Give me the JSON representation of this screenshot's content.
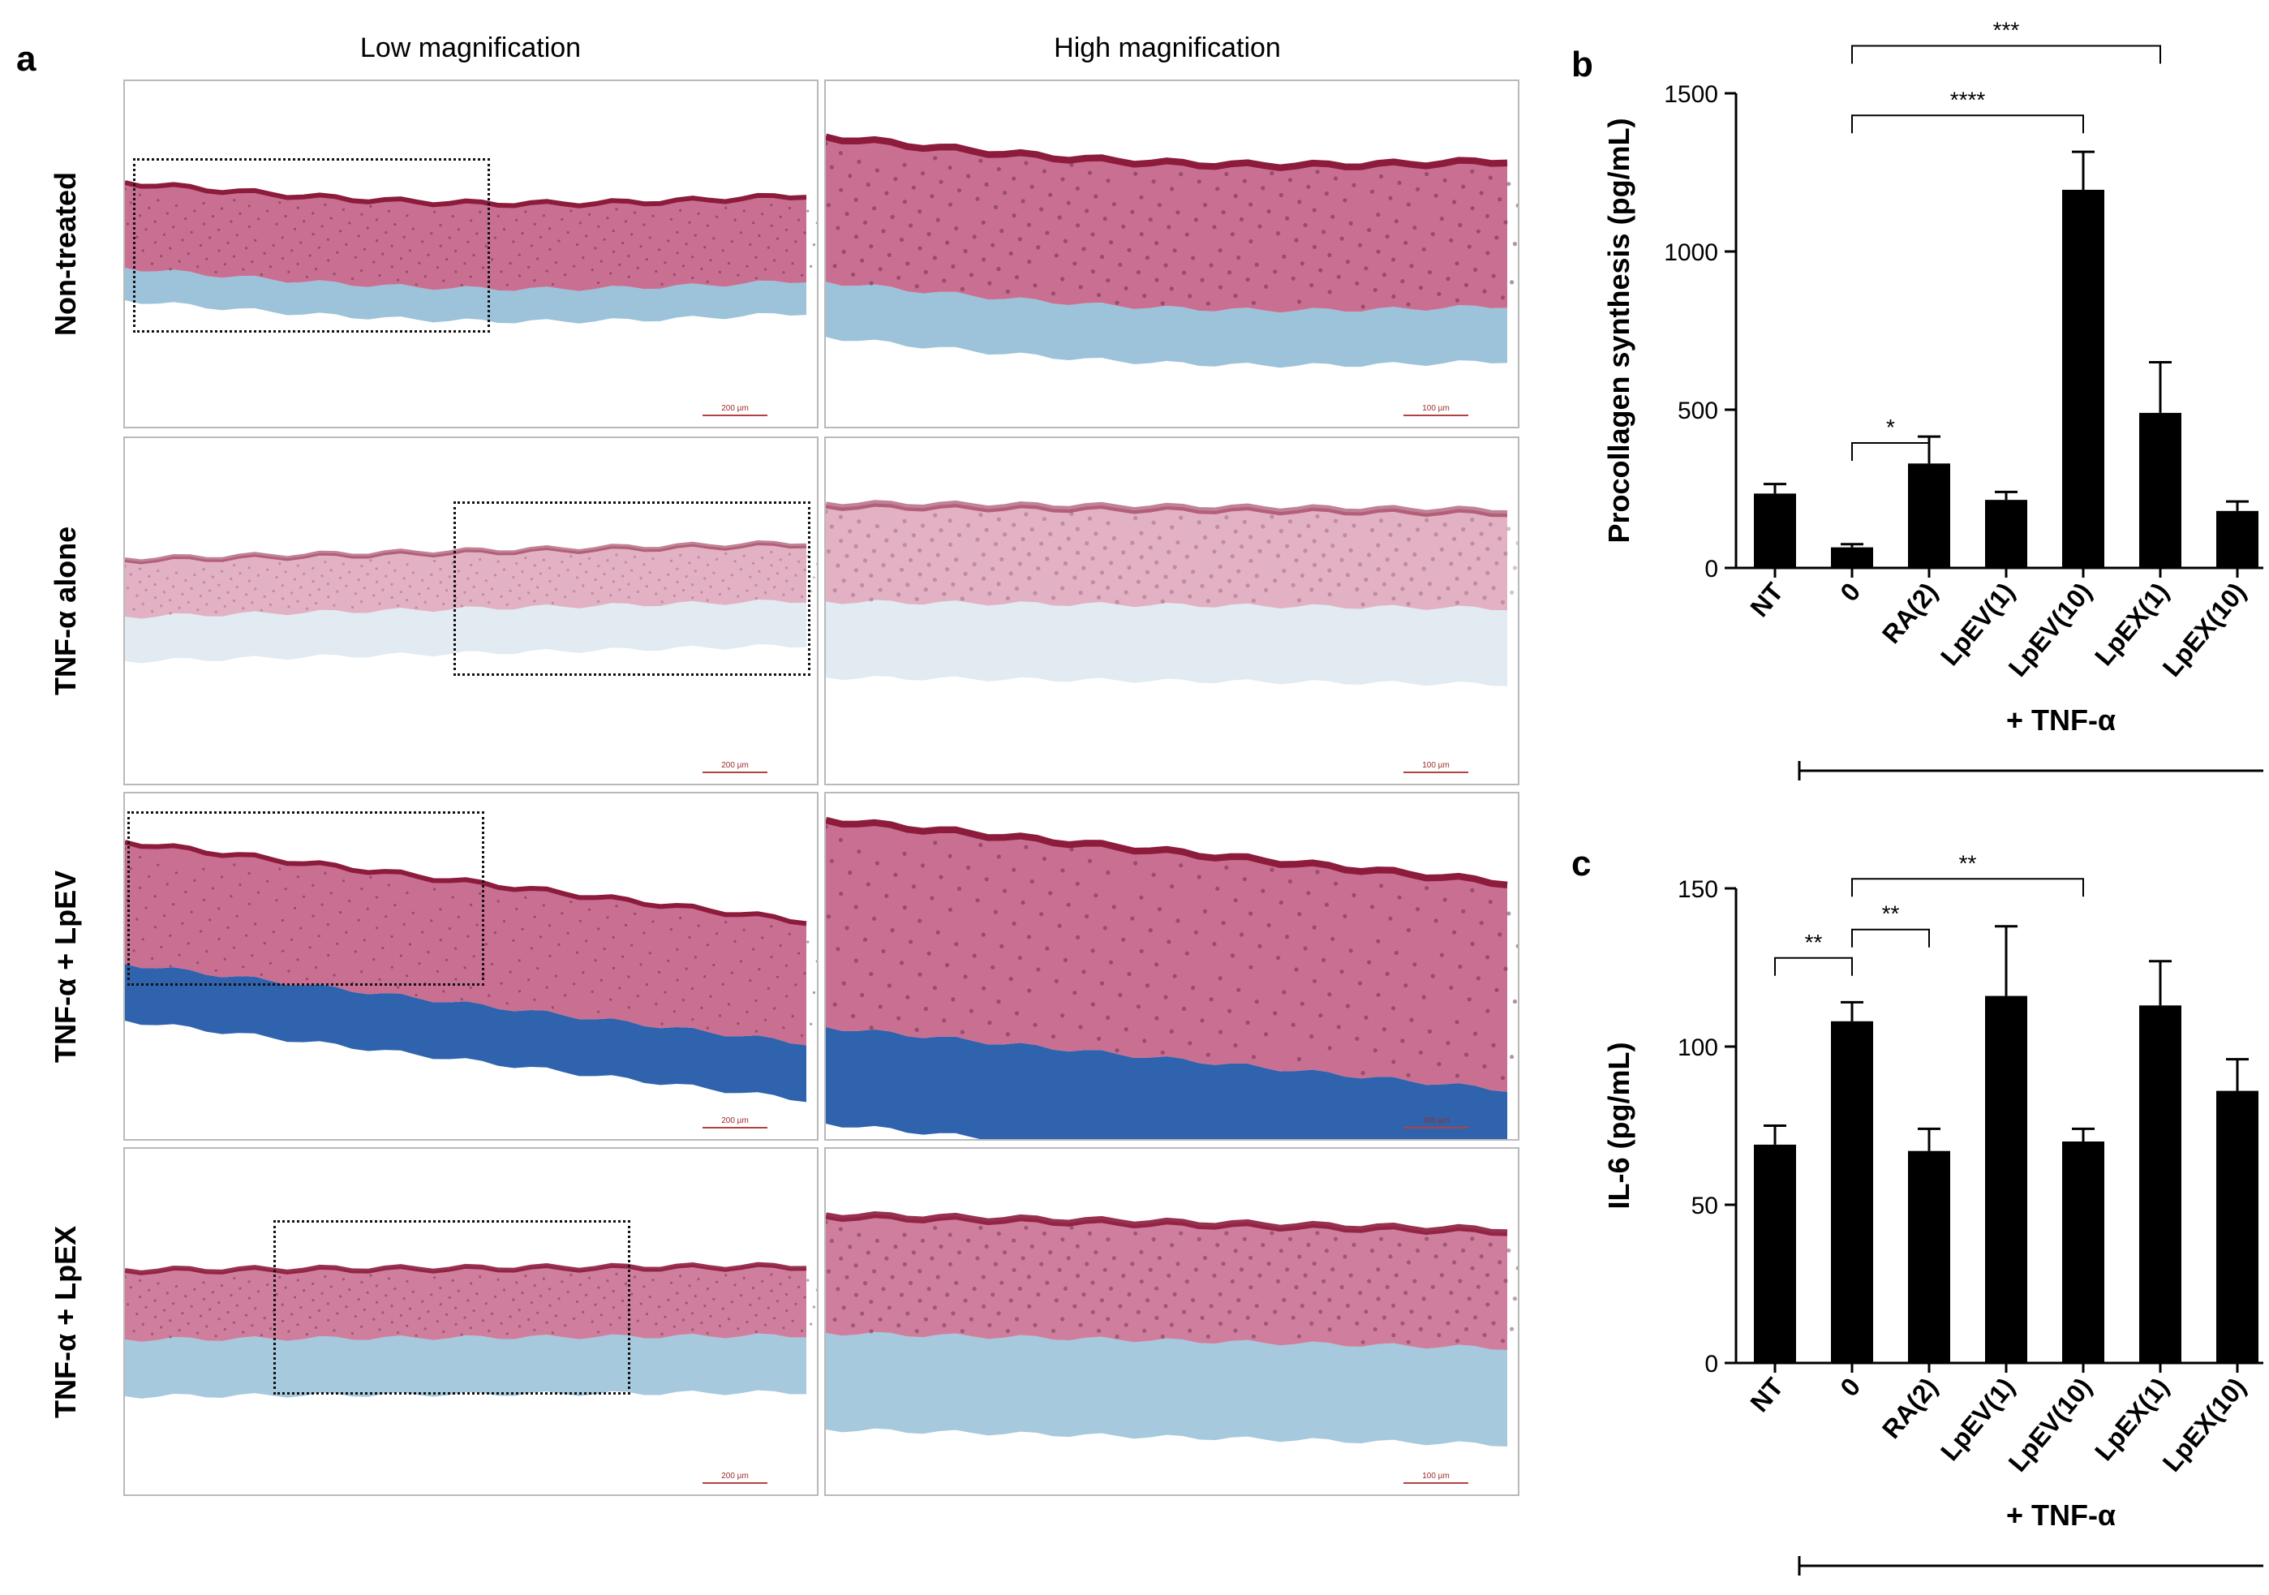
{
  "panel_a": {
    "letter": "a",
    "col_headers": [
      "Low magnification",
      "High magnification"
    ],
    "rows": [
      {
        "label": "Non-treated",
        "scale_low": "200 µm",
        "scale_high": "100 µm"
      },
      {
        "label": "TNF-α alone",
        "scale_low": "200 µm",
        "scale_high": "100 µm"
      },
      {
        "label": "TNF-α + LpEV",
        "scale_low": "200 µm",
        "scale_high": "100 µm"
      },
      {
        "label": "TNF-α + LpEX",
        "scale_low": "200 µm",
        "scale_high": "100 µm"
      }
    ],
    "colors": {
      "epidermis": "#c0577f",
      "stratum": "#8c1b3c",
      "dermis_light": "#9cc3d9",
      "dermis_dark": "#2f63ad"
    }
  },
  "panel_b": {
    "letter": "b"
  },
  "panel_c": {
    "letter": "c"
  },
  "chart_data": [
    {
      "type": "bar",
      "panel": "b",
      "categories": [
        "NT",
        "0",
        "RA(2)",
        "LpEV(1)",
        "LpEV(10)",
        "LpEX(1)",
        "LpEX(10)"
      ],
      "values": [
        235,
        65,
        330,
        215,
        1195,
        490,
        180
      ],
      "errors": [
        30,
        10,
        85,
        25,
        120,
        160,
        30
      ],
      "ylabel": "Procollagen synthesis (pg/mL)",
      "ylim": [
        0,
        1500
      ],
      "yticks": [
        0,
        500,
        1000,
        1500
      ],
      "group_label": "+ TNF-α",
      "significance": [
        {
          "from": 1,
          "to": 2,
          "label": "*"
        },
        {
          "from": 1,
          "to": 4,
          "label": "****"
        },
        {
          "from": 1,
          "to": 5,
          "label": "***"
        }
      ]
    },
    {
      "type": "bar",
      "panel": "c",
      "categories": [
        "NT",
        "0",
        "RA(2)",
        "LpEV(1)",
        "LpEV(10)",
        "LpEX(1)",
        "LpEX(10)"
      ],
      "values": [
        69,
        108,
        67,
        116,
        70,
        113,
        86
      ],
      "errors": [
        6,
        6,
        7,
        22,
        4,
        14,
        10
      ],
      "ylabel": "IL-6 (pg/mL)",
      "ylim": [
        0,
        150
      ],
      "yticks": [
        0,
        50,
        100,
        150
      ],
      "group_label": "+ TNF-α",
      "significance": [
        {
          "from": 0,
          "to": 1,
          "label": "**"
        },
        {
          "from": 1,
          "to": 2,
          "label": "**"
        },
        {
          "from": 1,
          "to": 4,
          "label": "**"
        }
      ]
    }
  ]
}
